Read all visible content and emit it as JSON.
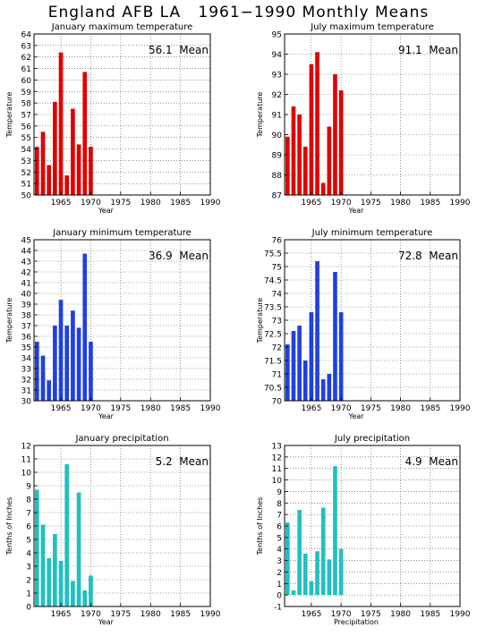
{
  "title": "England AFB LA   1961−1990 Monthly Means",
  "chart_data": [
    {
      "type": "bar",
      "title": "January maximum temperature",
      "ylabel": "Temperature",
      "xlabel": "Year",
      "mean_text": "56.1  Mean",
      "color": "#e00000",
      "ylim": [
        50,
        64
      ],
      "yticks": [
        50,
        51,
        52,
        53,
        54,
        55,
        56,
        57,
        58,
        59,
        60,
        61,
        62,
        63,
        64
      ],
      "xlim": [
        1960.5,
        1990
      ],
      "xticks": [
        1965,
        1970,
        1975,
        1980,
        1985,
        1990
      ],
      "x": [
        1961,
        1962,
        1963,
        1964,
        1965,
        1966,
        1967,
        1968,
        1969,
        1970
      ],
      "values": [
        54.2,
        55.5,
        52.6,
        58.1,
        62.4,
        51.7,
        57.5,
        54.4,
        60.7,
        54.2
      ]
    },
    {
      "type": "bar",
      "title": "July maximum temperature",
      "ylabel": "Temperature",
      "xlabel": "Year",
      "mean_text": "91.1  Mean",
      "color": "#e00000",
      "ylim": [
        87,
        95
      ],
      "yticks": [
        87,
        88,
        89,
        90,
        91,
        92,
        93,
        94,
        95
      ],
      "ytick_labels": [
        "87",
        "88",
        "89",
        "90",
        "91",
        "92",
        "93",
        "94",
        "95"
      ],
      "xlim": [
        1960.5,
        1990
      ],
      "xticks": [
        1965,
        1970,
        1975,
        1980,
        1985,
        1990
      ],
      "x": [
        1961,
        1962,
        1963,
        1964,
        1965,
        1966,
        1967,
        1968,
        1969,
        1970
      ],
      "values": [
        89.9,
        91.4,
        91.0,
        89.4,
        93.5,
        94.1,
        87.6,
        90.4,
        93.0,
        92.2
      ]
    },
    {
      "type": "bar",
      "title": "January minimum temperature",
      "ylabel": "Temperature",
      "xlabel": "Year",
      "mean_text": "36.9  Mean",
      "color": "#2040e0",
      "ylim": [
        30,
        45
      ],
      "yticks": [
        30,
        31,
        32,
        33,
        34,
        35,
        36,
        37,
        38,
        39,
        40,
        41,
        42,
        43,
        44,
        45
      ],
      "xlim": [
        1960.5,
        1990
      ],
      "xticks": [
        1965,
        1970,
        1975,
        1980,
        1985,
        1990
      ],
      "x": [
        1961,
        1962,
        1963,
        1964,
        1965,
        1966,
        1967,
        1968,
        1969,
        1970
      ],
      "values": [
        35.5,
        34.2,
        31.9,
        37.0,
        39.4,
        37.0,
        38.4,
        36.8,
        43.7,
        35.5
      ]
    },
    {
      "type": "bar",
      "title": "July minimum temperature",
      "ylabel": "Temperature",
      "xlabel": "Year",
      "mean_text": "72.8  Mean",
      "color": "#2040e0",
      "ylim": [
        70,
        76
      ],
      "yticks": [
        70,
        70.5,
        71,
        71.5,
        72,
        72.5,
        73,
        73.5,
        74,
        74.5,
        75,
        75.5,
        76
      ],
      "xlim": [
        1960.5,
        1990
      ],
      "xticks": [
        1965,
        1970,
        1975,
        1980,
        1985,
        1990
      ],
      "x": [
        1961,
        1962,
        1963,
        1964,
        1965,
        1966,
        1967,
        1968,
        1969,
        1970
      ],
      "values": [
        72.1,
        72.6,
        72.8,
        71.5,
        73.3,
        75.2,
        70.8,
        71.0,
        74.8,
        73.3
      ]
    },
    {
      "type": "bar",
      "title": "January precipitation",
      "ylabel": "Tenths of Inches",
      "xlabel": "Year",
      "mean_text": "5.2  Mean",
      "color": "#20c0c0",
      "ylim": [
        0,
        12
      ],
      "yticks": [
        0,
        1,
        2,
        3,
        4,
        5,
        6,
        7,
        8,
        9,
        10,
        11,
        12
      ],
      "xlim": [
        1960.5,
        1990
      ],
      "xticks": [
        1965,
        1970,
        1975,
        1980,
        1985,
        1990
      ],
      "x": [
        1961,
        1962,
        1963,
        1964,
        1965,
        1966,
        1967,
        1968,
        1969,
        1970
      ],
      "values": [
        8.7,
        6.1,
        3.6,
        5.4,
        3.4,
        10.6,
        1.9,
        8.5,
        1.2,
        2.3
      ]
    },
    {
      "type": "bar",
      "title": "July precipitation",
      "ylabel": "Tenths of Inches",
      "xlabel": "Precipitation",
      "mean_text": "4.9  Mean",
      "color": "#20c0c0",
      "ylim": [
        -1,
        13
      ],
      "yticks": [
        -1,
        0,
        1,
        2,
        3,
        4,
        5,
        6,
        7,
        8,
        9,
        10,
        11,
        12,
        13
      ],
      "xlim": [
        1960.5,
        1990
      ],
      "xticks": [
        1965,
        1970,
        1975,
        1980,
        1985,
        1990
      ],
      "x": [
        1961,
        1962,
        1963,
        1964,
        1965,
        1966,
        1967,
        1968,
        1969,
        1970
      ],
      "values": [
        6.3,
        0.4,
        7.4,
        3.6,
        1.2,
        3.8,
        7.6,
        3.1,
        11.2,
        4.0
      ]
    }
  ]
}
